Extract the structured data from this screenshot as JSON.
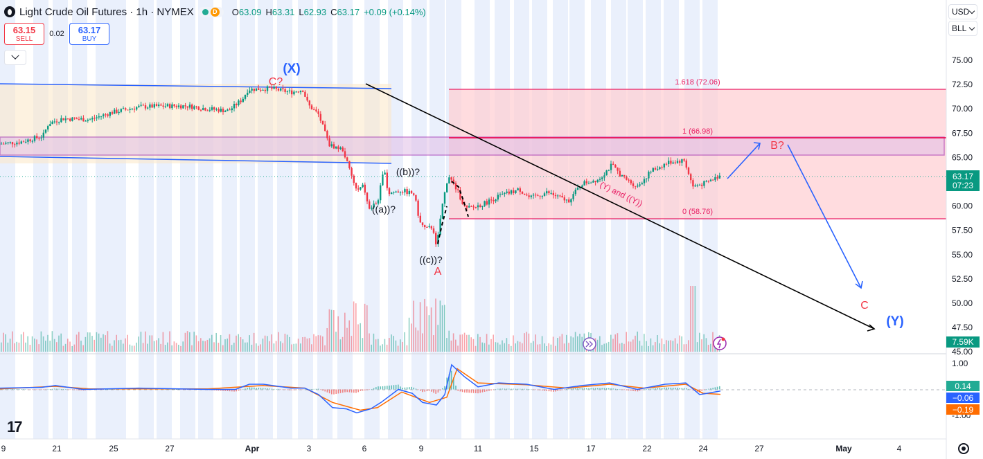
{
  "header": {
    "title": "Light Crude Oil Futures · 1h · NYMEX",
    "delayed_badge": "D",
    "ohlc": [
      {
        "k": "O",
        "v": "63.09"
      },
      {
        "k": "H",
        "v": "63.31"
      },
      {
        "k": "L",
        "v": "62.93"
      },
      {
        "k": "C",
        "v": "63.17"
      }
    ],
    "change": "+0.09 (+0.14%)"
  },
  "trade": {
    "sell_price": "63.15",
    "sell_label": "SELL",
    "spread": "0.02",
    "buy_price": "63.17",
    "buy_label": "BUY"
  },
  "top_right": {
    "currency": "USD",
    "unit": "BLL"
  },
  "branding": {
    "logo": "17"
  },
  "icons": {
    "logo": "circle-logo-icon",
    "collapse": "chevron-down-icon",
    "settings": "gear-icon",
    "replay": "replay-icon",
    "alert": "lightning-icon"
  },
  "colors": {
    "up": "#089981",
    "down": "#f23645",
    "accent": "#2962ff",
    "wave_red": "#f23645",
    "wave_blue": "#2962ff",
    "macd_line": "#2962ff",
    "signal_line": "#ff6d00",
    "fib_band": "#ffcdd2",
    "fib_line": "#e91e63"
  },
  "chart_data": [
    {
      "type": "candlestick",
      "title": "Light Crude Oil Futures · 1h · NYMEX",
      "x_ticks": [
        "9",
        "21",
        "25",
        "27",
        "Apr",
        "3",
        "6",
        "9",
        "11",
        "15",
        "17",
        "22",
        "24",
        "27",
        "May",
        "4"
      ],
      "y_ticks": [
        "75.00",
        "72.50",
        "70.00",
        "67.50",
        "65.00",
        "62.50",
        "60.00",
        "57.50",
        "55.00",
        "52.50",
        "50.00",
        "47.50",
        "45.00"
      ],
      "ylim": [
        45.0,
        77.0
      ],
      "last_price": {
        "value": "63.17",
        "countdown": "07:23"
      },
      "volume_label": "7.59K",
      "price_path": [
        {
          "x": 0,
          "y": 66.4
        },
        {
          "x": 30,
          "y": 66.6
        },
        {
          "x": 62,
          "y": 67.2
        },
        {
          "x": 70,
          "y": 68.5
        },
        {
          "x": 90,
          "y": 69.0
        },
        {
          "x": 130,
          "y": 68.9
        },
        {
          "x": 160,
          "y": 69.6
        },
        {
          "x": 200,
          "y": 70.2
        },
        {
          "x": 240,
          "y": 70.3
        },
        {
          "x": 270,
          "y": 70.3
        },
        {
          "x": 300,
          "y": 70.0
        },
        {
          "x": 330,
          "y": 69.8
        },
        {
          "x": 350,
          "y": 71.0
        },
        {
          "x": 358,
          "y": 72.0
        },
        {
          "x": 390,
          "y": 72.1
        },
        {
          "x": 420,
          "y": 71.7
        },
        {
          "x": 437,
          "y": 72.0
        },
        {
          "x": 445,
          "y": 70.4
        },
        {
          "x": 460,
          "y": 69.4
        },
        {
          "x": 475,
          "y": 66.3
        },
        {
          "x": 495,
          "y": 65.8
        },
        {
          "x": 505,
          "y": 63.6
        },
        {
          "x": 515,
          "y": 61.5
        },
        {
          "x": 525,
          "y": 62.1
        },
        {
          "x": 532,
          "y": 59.7
        },
        {
          "x": 545,
          "y": 60.4
        },
        {
          "x": 555,
          "y": 64.0
        },
        {
          "x": 560,
          "y": 61.3
        },
        {
          "x": 580,
          "y": 61.6
        },
        {
          "x": 598,
          "y": 61.2
        },
        {
          "x": 606,
          "y": 58.3
        },
        {
          "x": 615,
          "y": 57.6
        },
        {
          "x": 625,
          "y": 57.9
        },
        {
          "x": 630,
          "y": 55.5
        },
        {
          "x": 637,
          "y": 59.5
        },
        {
          "x": 647,
          "y": 63.2
        },
        {
          "x": 660,
          "y": 61.6
        },
        {
          "x": 672,
          "y": 59.7
        },
        {
          "x": 685,
          "y": 59.9
        },
        {
          "x": 700,
          "y": 60.3
        },
        {
          "x": 720,
          "y": 61.0
        },
        {
          "x": 750,
          "y": 61.7
        },
        {
          "x": 765,
          "y": 60.8
        },
        {
          "x": 790,
          "y": 61.4
        },
        {
          "x": 820,
          "y": 60.5
        },
        {
          "x": 840,
          "y": 62.3
        },
        {
          "x": 865,
          "y": 62.8
        },
        {
          "x": 883,
          "y": 64.2
        },
        {
          "x": 900,
          "y": 62.9
        },
        {
          "x": 920,
          "y": 62.0
        },
        {
          "x": 940,
          "y": 63.6
        },
        {
          "x": 965,
          "y": 64.5
        },
        {
          "x": 988,
          "y": 64.7
        },
        {
          "x": 1000,
          "y": 62.0
        },
        {
          "x": 1020,
          "y": 62.4
        },
        {
          "x": 1040,
          "y": 63.17
        }
      ]
    },
    {
      "type": "line",
      "title": "MACD",
      "y_ticks": [
        "1.00",
        "-1.00"
      ],
      "ylim": [
        -1.1,
        1.1
      ],
      "labels": {
        "histogram": "0.14",
        "macd": "−0.06",
        "signal": "−0.19"
      },
      "macd_path": [
        {
          "x": 0,
          "y": 0.05
        },
        {
          "x": 60,
          "y": 0.08
        },
        {
          "x": 80,
          "y": 0.15
        },
        {
          "x": 120,
          "y": 0.0
        },
        {
          "x": 200,
          "y": 0.05
        },
        {
          "x": 300,
          "y": 0.0
        },
        {
          "x": 340,
          "y": 0.0
        },
        {
          "x": 360,
          "y": 0.2
        },
        {
          "x": 380,
          "y": 0.2
        },
        {
          "x": 420,
          "y": 0.05
        },
        {
          "x": 440,
          "y": 0.05
        },
        {
          "x": 460,
          "y": -0.2
        },
        {
          "x": 480,
          "y": -0.7
        },
        {
          "x": 500,
          "y": -0.75
        },
        {
          "x": 515,
          "y": -0.9
        },
        {
          "x": 535,
          "y": -0.75
        },
        {
          "x": 550,
          "y": -0.5
        },
        {
          "x": 575,
          "y": 0.0
        },
        {
          "x": 595,
          "y": -0.15
        },
        {
          "x": 610,
          "y": -0.5
        },
        {
          "x": 630,
          "y": -0.6
        },
        {
          "x": 642,
          "y": -0.2
        },
        {
          "x": 652,
          "y": 0.95
        },
        {
          "x": 670,
          "y": 0.5
        },
        {
          "x": 690,
          "y": 0.1
        },
        {
          "x": 720,
          "y": 0.25
        },
        {
          "x": 760,
          "y": 0.2
        },
        {
          "x": 800,
          "y": 0.0
        },
        {
          "x": 840,
          "y": 0.15
        },
        {
          "x": 880,
          "y": 0.25
        },
        {
          "x": 920,
          "y": 0.0
        },
        {
          "x": 960,
          "y": 0.2
        },
        {
          "x": 990,
          "y": 0.25
        },
        {
          "x": 1010,
          "y": -0.2
        },
        {
          "x": 1040,
          "y": -0.06
        }
      ],
      "signal_path": [
        {
          "x": 0,
          "y": 0.02
        },
        {
          "x": 80,
          "y": 0.12
        },
        {
          "x": 130,
          "y": 0.02
        },
        {
          "x": 300,
          "y": 0.02
        },
        {
          "x": 380,
          "y": 0.15
        },
        {
          "x": 440,
          "y": 0.05
        },
        {
          "x": 480,
          "y": -0.5
        },
        {
          "x": 520,
          "y": -0.8
        },
        {
          "x": 545,
          "y": -0.7
        },
        {
          "x": 580,
          "y": -0.1
        },
        {
          "x": 620,
          "y": -0.5
        },
        {
          "x": 645,
          "y": -0.3
        },
        {
          "x": 660,
          "y": 0.8
        },
        {
          "x": 690,
          "y": 0.25
        },
        {
          "x": 760,
          "y": 0.18
        },
        {
          "x": 820,
          "y": 0.05
        },
        {
          "x": 880,
          "y": 0.2
        },
        {
          "x": 930,
          "y": 0.05
        },
        {
          "x": 990,
          "y": 0.2
        },
        {
          "x": 1015,
          "y": -0.15
        },
        {
          "x": 1040,
          "y": -0.19
        }
      ]
    }
  ],
  "annotations": {
    "wave_x": "(X)",
    "wave_c_q": "C?",
    "wave_a": "A",
    "wave_b_q": "B?",
    "wave_c": "C",
    "wave_y": "(Y)",
    "sub_a": "((a))?",
    "sub_b": "((b))?",
    "sub_c": "((c))?",
    "channel_note": "(Y) and ((Y))",
    "fib_1618": "1.618 (72.06)",
    "fib_1": "1 (66.98)",
    "fib_0": "0 (58.76)"
  }
}
